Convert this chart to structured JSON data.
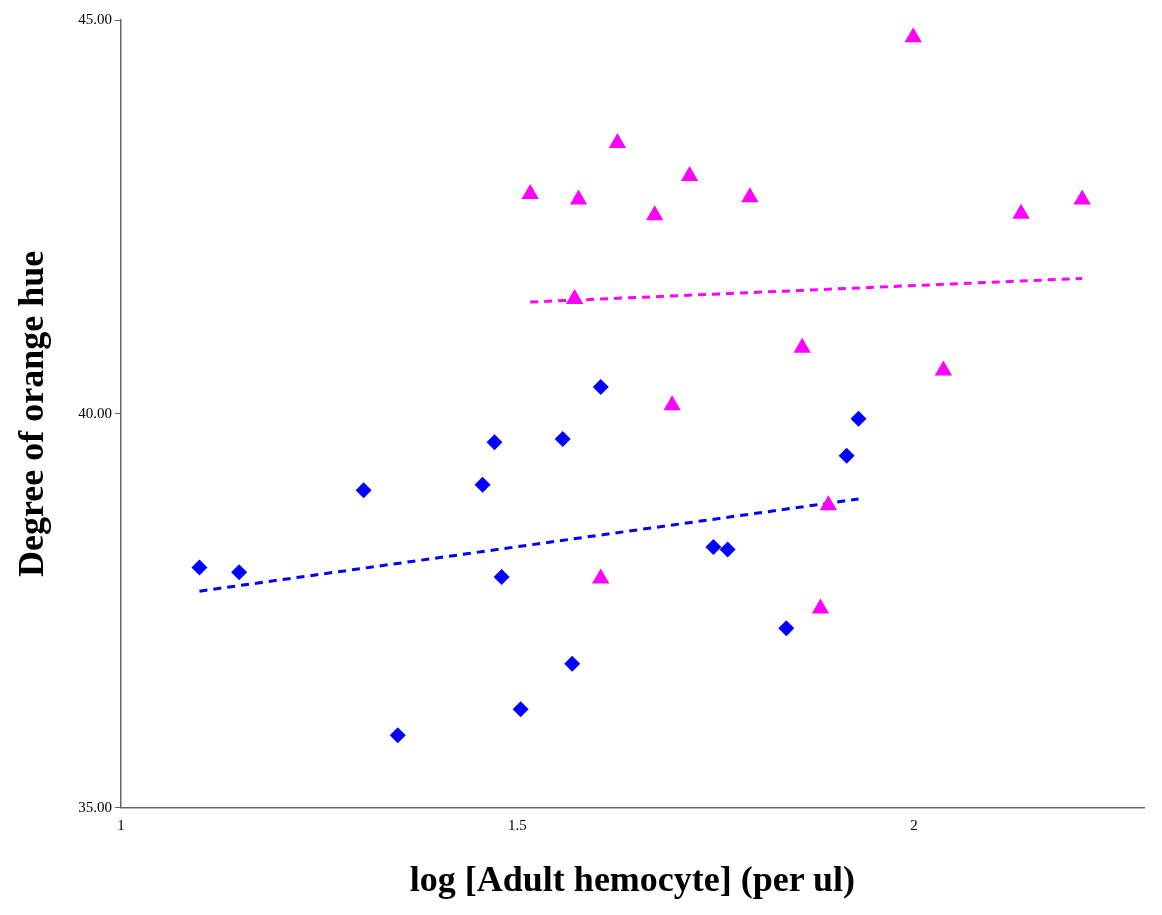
{
  "chart_data": {
    "type": "scatter",
    "xlabel": "log [Adult hemocyte] (per ul)",
    "ylabel": "Degree of orange hue",
    "xlim": [
      1,
      2.29
    ],
    "xticks": [
      {
        "value": 1,
        "label": "1"
      },
      {
        "value": 1.5,
        "label": "1.5"
      },
      {
        "value": 2,
        "label": "2"
      }
    ],
    "ylim": [
      35,
      45
    ],
    "yticks": [
      {
        "value": 35,
        "label": "35.00"
      },
      {
        "value": 40,
        "label": "40.00"
      },
      {
        "value": 45,
        "label": "45.00"
      }
    ],
    "grid": false,
    "legend": false,
    "series": [
      {
        "marker": "diamond",
        "color": "#0000ff",
        "x": [
          1.099,
          1.149,
          1.306,
          1.349,
          1.456,
          1.471,
          1.48,
          1.504,
          1.557,
          1.569,
          1.605,
          1.747,
          1.765,
          1.839,
          1.915,
          1.93
        ],
        "values": [
          38.05,
          37.99,
          39.03,
          35.92,
          39.1,
          39.64,
          37.93,
          36.25,
          39.68,
          36.83,
          40.34,
          38.31,
          38.28,
          37.28,
          39.47,
          39.94
        ]
      },
      {
        "marker": "triangle",
        "color": "#ff00ff",
        "x": [
          1.516,
          1.577,
          1.572,
          1.626,
          1.673,
          1.717,
          1.793,
          1.999,
          2.135,
          2.212,
          1.859,
          2.037,
          1.695,
          1.605,
          1.892,
          1.882
        ],
        "values": [
          42.79,
          42.72,
          41.46,
          43.44,
          42.52,
          43.02,
          42.75,
          44.78,
          42.54,
          42.72,
          40.84,
          40.55,
          40.11,
          37.91,
          38.84,
          37.53
        ]
      },
      {
        "type": "line",
        "marker": "none",
        "line_style": "dashed",
        "color": "#0000ff",
        "x": [
          1.099,
          1.93
        ],
        "values": [
          37.75,
          38.92
        ]
      },
      {
        "type": "line",
        "marker": "none",
        "line_style": "dashed",
        "color": "#ff00ff",
        "x": [
          1.516,
          2.212
        ],
        "values": [
          41.42,
          41.72
        ]
      }
    ]
  }
}
